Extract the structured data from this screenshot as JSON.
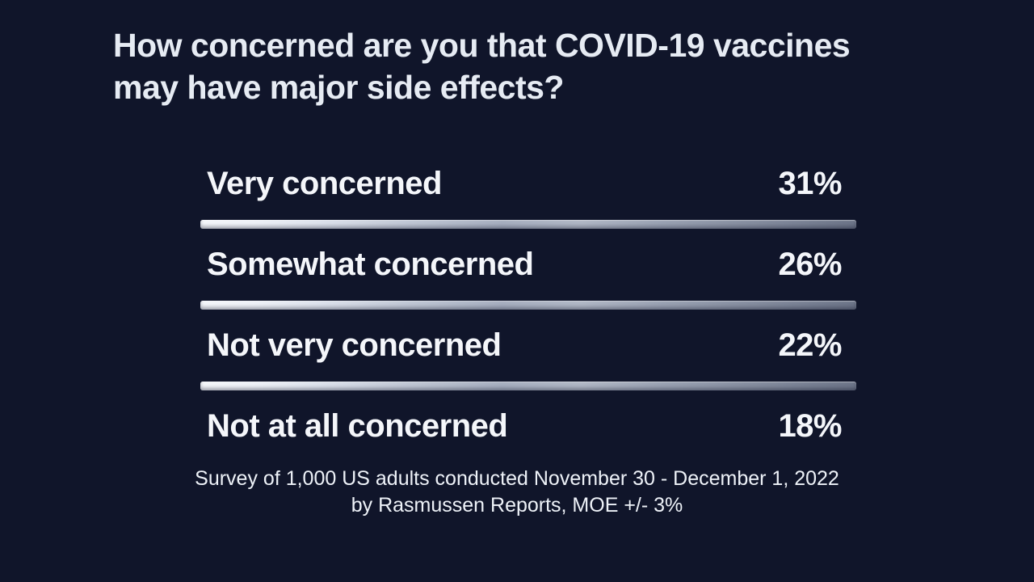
{
  "title": {
    "line1": "How concerned are you that COVID-19 vaccines",
    "line2": "may have major side effects?"
  },
  "rows": [
    {
      "label": "Very concerned",
      "value": "31%"
    },
    {
      "label": "Somewhat concerned",
      "value": "26%"
    },
    {
      "label": "Not very concerned",
      "value": "22%"
    },
    {
      "label": "Not at all concerned",
      "value": "18%"
    }
  ],
  "footer": {
    "line1": "Survey of 1,000 US adults conducted November 30 - December 1, 2022",
    "line2": "by Rasmussen Reports, MOE +/- 3%"
  },
  "chart_data": {
    "type": "bar",
    "title": "How concerned are you that COVID-19 vaccines may have major side effects?",
    "categories": [
      "Very concerned",
      "Somewhat concerned",
      "Not very concerned",
      "Not at all concerned"
    ],
    "values": [
      31,
      26,
      22,
      18
    ],
    "unit": "%",
    "legend": "none",
    "grid": "off",
    "annotation": "Survey of 1,000 US adults conducted November 30 - December 1, 2022 by Rasmussen Reports, MOE +/- 3%"
  },
  "colors": {
    "background": "#10152a",
    "title_text": "#e6ebf3",
    "row_text": "#f4f6fa",
    "divider_start": "#f4f6fa",
    "divider_mid": "#a6aebf",
    "divider_end": "#6c7488"
  }
}
